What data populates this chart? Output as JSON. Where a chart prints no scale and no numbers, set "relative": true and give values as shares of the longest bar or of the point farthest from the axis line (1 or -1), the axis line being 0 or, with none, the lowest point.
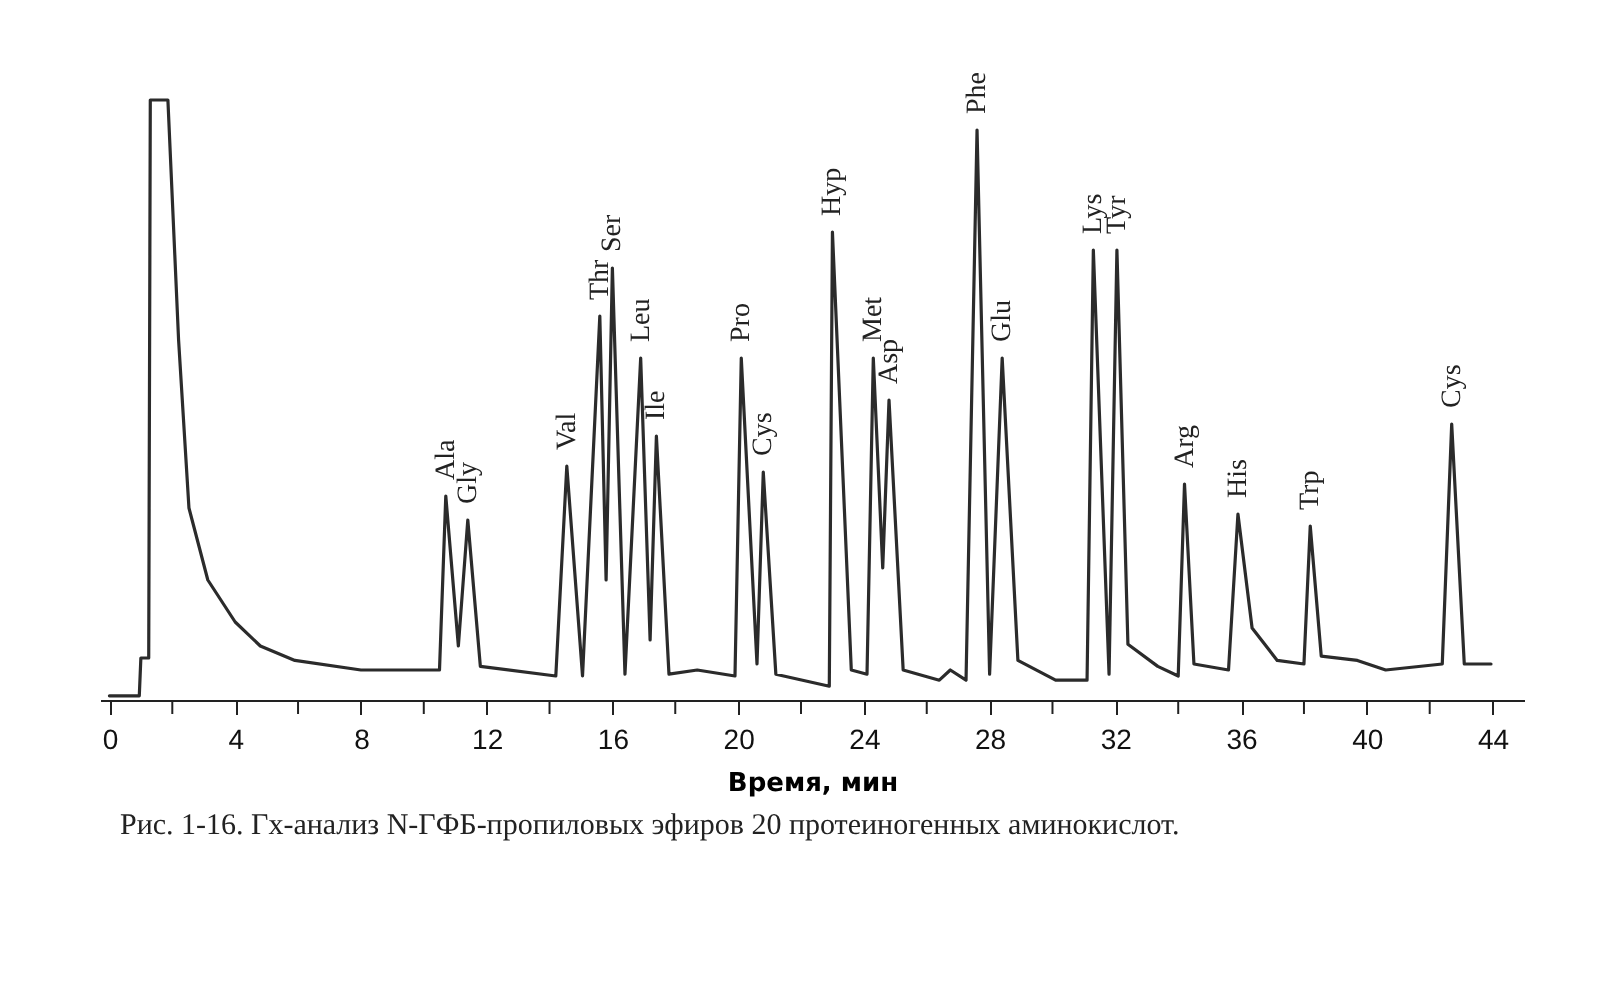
{
  "chart_data": {
    "type": "line",
    "relative": true,
    "xlabel": "Время, мин",
    "color": "#2b2b2b",
    "marker": "none",
    "grid": false,
    "tick_labels": "x",
    "xlim": [
      -0.3,
      45
    ],
    "xticks": [
      0,
      {
        "value": 2,
        "label": null
      },
      4,
      {
        "value": 6,
        "label": null
      },
      8,
      {
        "value": 10,
        "label": null
      },
      12,
      {
        "value": 14,
        "label": null
      },
      16,
      {
        "value": 18,
        "label": null
      },
      20,
      {
        "value": 22,
        "label": null
      },
      24,
      {
        "value": 26,
        "label": null
      },
      28,
      {
        "value": 30,
        "label": null
      },
      32,
      {
        "value": 34,
        "label": null
      },
      36,
      {
        "value": 38,
        "label": null
      },
      40,
      {
        "value": 42,
        "label": null
      },
      44
    ],
    "x": [
      0,
      0.95,
      1.0,
      1.25,
      1.3,
      1.86,
      2.2,
      2.53,
      3.13,
      4.0,
      4.8,
      5.9,
      8.0,
      10.5,
      10.7,
      11.1,
      11.4,
      11.8,
      14.2,
      14.55,
      15.05,
      15.6,
      15.8,
      16.0,
      16.4,
      16.9,
      17.2,
      17.4,
      17.8,
      18.7,
      19.9,
      20.1,
      20.6,
      20.8,
      21.2,
      22.9,
      23.0,
      23.6,
      24.1,
      24.3,
      24.6,
      24.8,
      25.25,
      26.4,
      26.75,
      27.25,
      27.6,
      28.0,
      28.4,
      28.9,
      30.1,
      31.1,
      31.3,
      31.8,
      32.05,
      32.4,
      33.35,
      34.0,
      34.2,
      34.5,
      35.6,
      35.9,
      36.35,
      37.15,
      38.0,
      38.2,
      38.55,
      39.7,
      40.6,
      42.4,
      42.7,
      43.1,
      43.95
    ],
    "values": [
      0.007,
      0.007,
      0.07,
      0.07,
      1.0,
      1.0,
      0.6,
      0.32,
      0.2,
      0.13,
      0.09,
      0.066,
      0.05,
      0.05,
      0.34,
      0.09,
      0.3,
      0.056,
      0.04,
      0.39,
      0.04,
      0.64,
      0.2,
      0.72,
      0.043,
      0.57,
      0.1,
      0.44,
      0.043,
      0.05,
      0.04,
      0.57,
      0.06,
      0.38,
      0.043,
      0.023,
      0.78,
      0.05,
      0.043,
      0.57,
      0.22,
      0.5,
      0.05,
      0.033,
      0.05,
      0.033,
      0.95,
      0.043,
      0.57,
      0.066,
      0.033,
      0.033,
      0.75,
      0.043,
      0.75,
      0.093,
      0.056,
      0.04,
      0.36,
      0.06,
      0.05,
      0.31,
      0.12,
      0.066,
      0.06,
      0.29,
      0.073,
      0.066,
      0.05,
      0.06,
      0.46,
      0.06,
      0.06
    ],
    "annotations": [
      {
        "text": "Ala",
        "x": 10.7,
        "y": 0.34
      },
      {
        "text": "Gly",
        "x": 11.4,
        "y": 0.3
      },
      {
        "text": "Val",
        "x": 14.55,
        "y": 0.39
      },
      {
        "text": "Thr",
        "x": 15.6,
        "y": 0.64
      },
      {
        "text": "Ser",
        "x": 16.0,
        "y": 0.72
      },
      {
        "text": "Leu",
        "x": 16.9,
        "y": 0.57
      },
      {
        "text": "Ile",
        "x": 17.4,
        "y": 0.44
      },
      {
        "text": "Pro",
        "x": 20.1,
        "y": 0.57
      },
      {
        "text": "Cys",
        "x": 20.8,
        "y": 0.38
      },
      {
        "text": "Hyp",
        "x": 23.0,
        "y": 0.78
      },
      {
        "text": "Met",
        "x": 24.3,
        "y": 0.57
      },
      {
        "text": "Asp",
        "x": 24.8,
        "y": 0.5
      },
      {
        "text": "Phe",
        "x": 27.6,
        "y": 0.95
      },
      {
        "text": "Glu",
        "x": 28.4,
        "y": 0.57
      },
      {
        "text": "Lys",
        "x": 31.3,
        "y": 0.75
      },
      {
        "text": "Tyr",
        "x": 32.05,
        "y": 0.75
      },
      {
        "text": "Arg",
        "x": 34.2,
        "y": 0.36
      },
      {
        "text": "His",
        "x": 35.9,
        "y": 0.31
      },
      {
        "text": "Trp",
        "x": 38.2,
        "y": 0.29
      },
      {
        "text": "Cys",
        "x": 42.7,
        "y": 0.46
      },
      "Рис. 1-16. Гх-анализ N-ГФБ-пропиловых эфиров 20 протеиногенных аминокислот."
    ]
  }
}
